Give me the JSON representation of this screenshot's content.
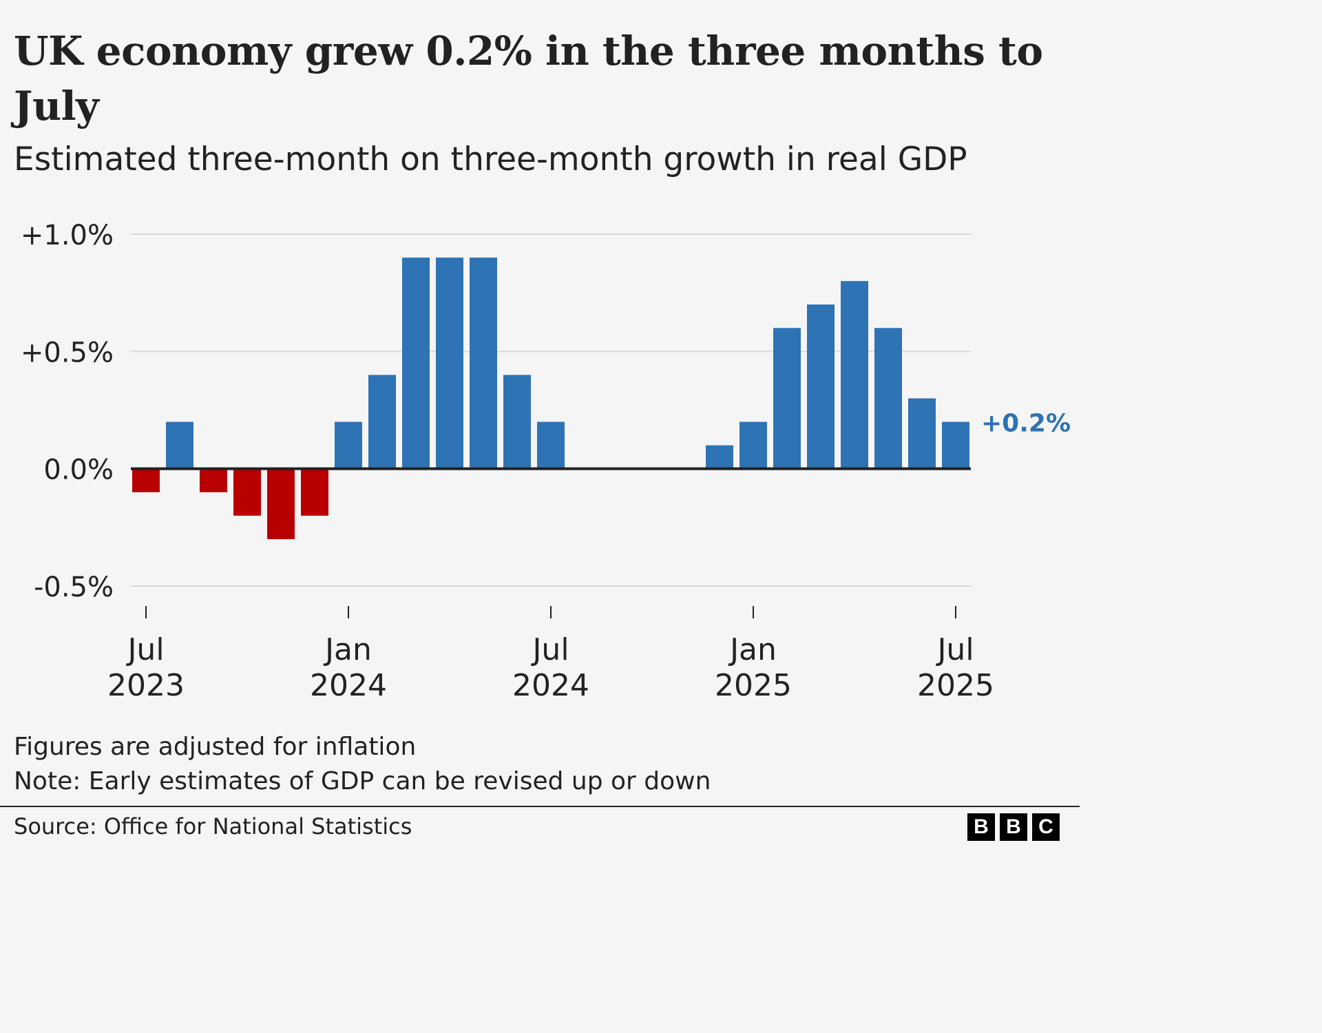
{
  "chart_data": {
    "type": "bar",
    "title": "UK economy grew 0.2% in the three months to July",
    "subtitle": "Estimated three-month on three-month growth in real GDP",
    "xlabel": "",
    "ylabel": "",
    "ylim": [
      -0.5,
      1.0
    ],
    "yticks": [
      {
        "value": 1.0,
        "label": "+1.0%"
      },
      {
        "value": 0.5,
        "label": "+0.5%"
      },
      {
        "value": 0.0,
        "label": "0.0%"
      },
      {
        "value": -0.5,
        "label": "-0.5%"
      }
    ],
    "grid": true,
    "categories": [
      "Jul 2023",
      "Aug 2023",
      "Sep 2023",
      "Oct 2023",
      "Nov 2023",
      "Dec 2023",
      "Jan 2024",
      "Feb 2024",
      "Mar 2024",
      "Apr 2024",
      "May 2024",
      "Jun 2024",
      "Jul 2024",
      "Aug 2024",
      "Sep 2024",
      "Oct 2024",
      "Nov 2024",
      "Dec 2024",
      "Jan 2025",
      "Feb 2025",
      "Mar 2025",
      "Apr 2025",
      "May 2025",
      "Jun 2025",
      "Jul 2025"
    ],
    "values": [
      -0.1,
      0.2,
      -0.1,
      -0.2,
      -0.3,
      -0.2,
      0.2,
      0.4,
      0.9,
      0.9,
      0.9,
      0.4,
      0.2,
      0.0,
      0.0,
      0.0,
      0.0,
      0.1,
      0.2,
      0.6,
      0.7,
      0.8,
      0.6,
      0.3,
      0.2
    ],
    "xticks": [
      {
        "index": 0,
        "line1": "Jul",
        "line2": "2023"
      },
      {
        "index": 6,
        "line1": "Jan",
        "line2": "2024"
      },
      {
        "index": 12,
        "line1": "Jul",
        "line2": "2024"
      },
      {
        "index": 18,
        "line1": "Jan",
        "line2": "2025"
      },
      {
        "index": 24,
        "line1": "Jul",
        "line2": "2025"
      }
    ],
    "annotation": {
      "index": 24,
      "text": "+0.2%"
    },
    "colors": {
      "positive": "#2e73b4",
      "negative": "#b80000",
      "zero_line": "#222222",
      "grid": "#d9d9d9"
    }
  },
  "notes": {
    "line1": "Figures are adjusted for inflation",
    "line2": "Note: Early estimates of GDP can be revised up or down"
  },
  "footer": {
    "source": "Source: Office for National Statistics",
    "logo_letters": [
      "B",
      "B",
      "C"
    ]
  }
}
